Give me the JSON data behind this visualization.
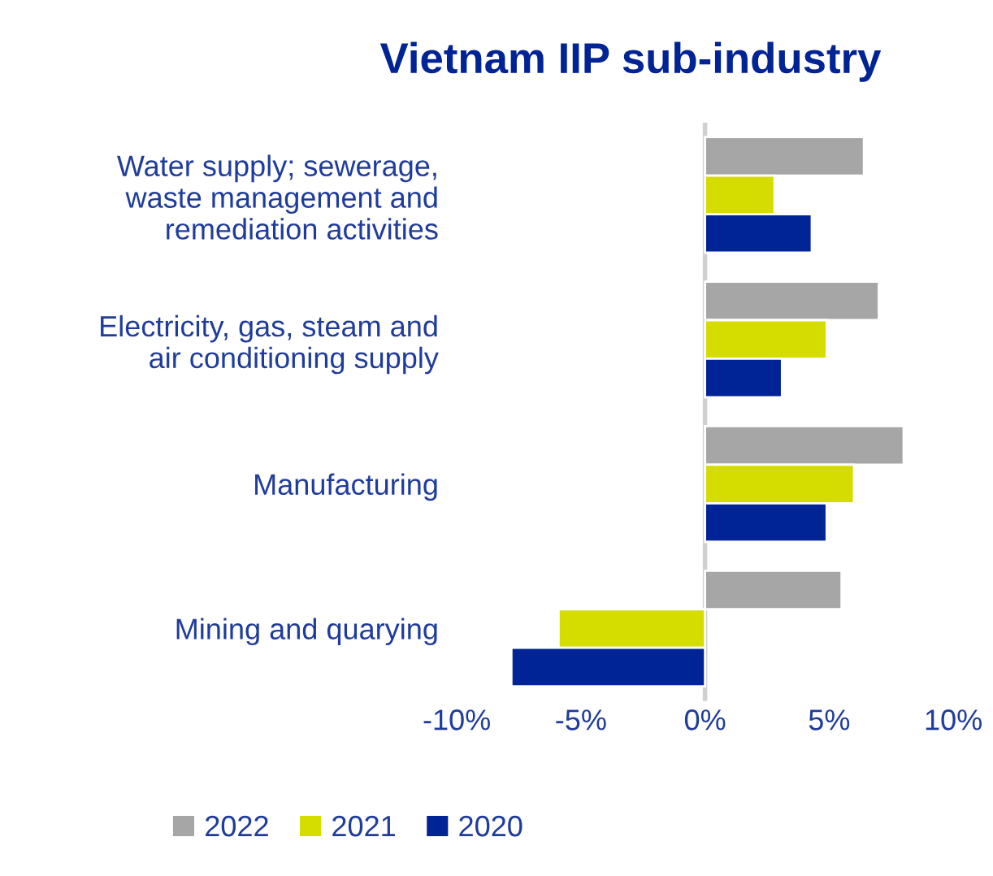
{
  "chart_data": {
    "type": "bar",
    "orientation": "horizontal",
    "title": "Vietnam IIP sub-industry",
    "categories": [
      "Water supply; sewerage,\nwaste management and\nremediation activities",
      "Electricity, gas, steam and\nair conditioning supply",
      "Manufacturing",
      "Mining and quarying"
    ],
    "series": [
      {
        "name": "2022",
        "color": "#a6a6a6",
        "values": [
          6.4,
          7.0,
          8.0,
          5.5
        ]
      },
      {
        "name": "2021",
        "color": "#d4dc00",
        "values": [
          2.8,
          4.9,
          6.0,
          -5.9
        ]
      },
      {
        "name": "2020",
        "color": "#002395",
        "values": [
          4.3,
          3.1,
          4.9,
          -7.8
        ]
      }
    ],
    "xlim": [
      -10,
      10
    ],
    "xticks": [
      {
        "value": -10,
        "label": "-10%"
      },
      {
        "value": -5,
        "label": "-5%"
      },
      {
        "value": 0,
        "label": "0%"
      },
      {
        "value": 5,
        "label": "5%"
      },
      {
        "value": 10,
        "label": "10%"
      }
    ],
    "ref_lines": [
      {
        "axis": "x",
        "value": 0,
        "color": "#d0d0d0"
      }
    ],
    "grid": false,
    "legend": "bottom"
  }
}
